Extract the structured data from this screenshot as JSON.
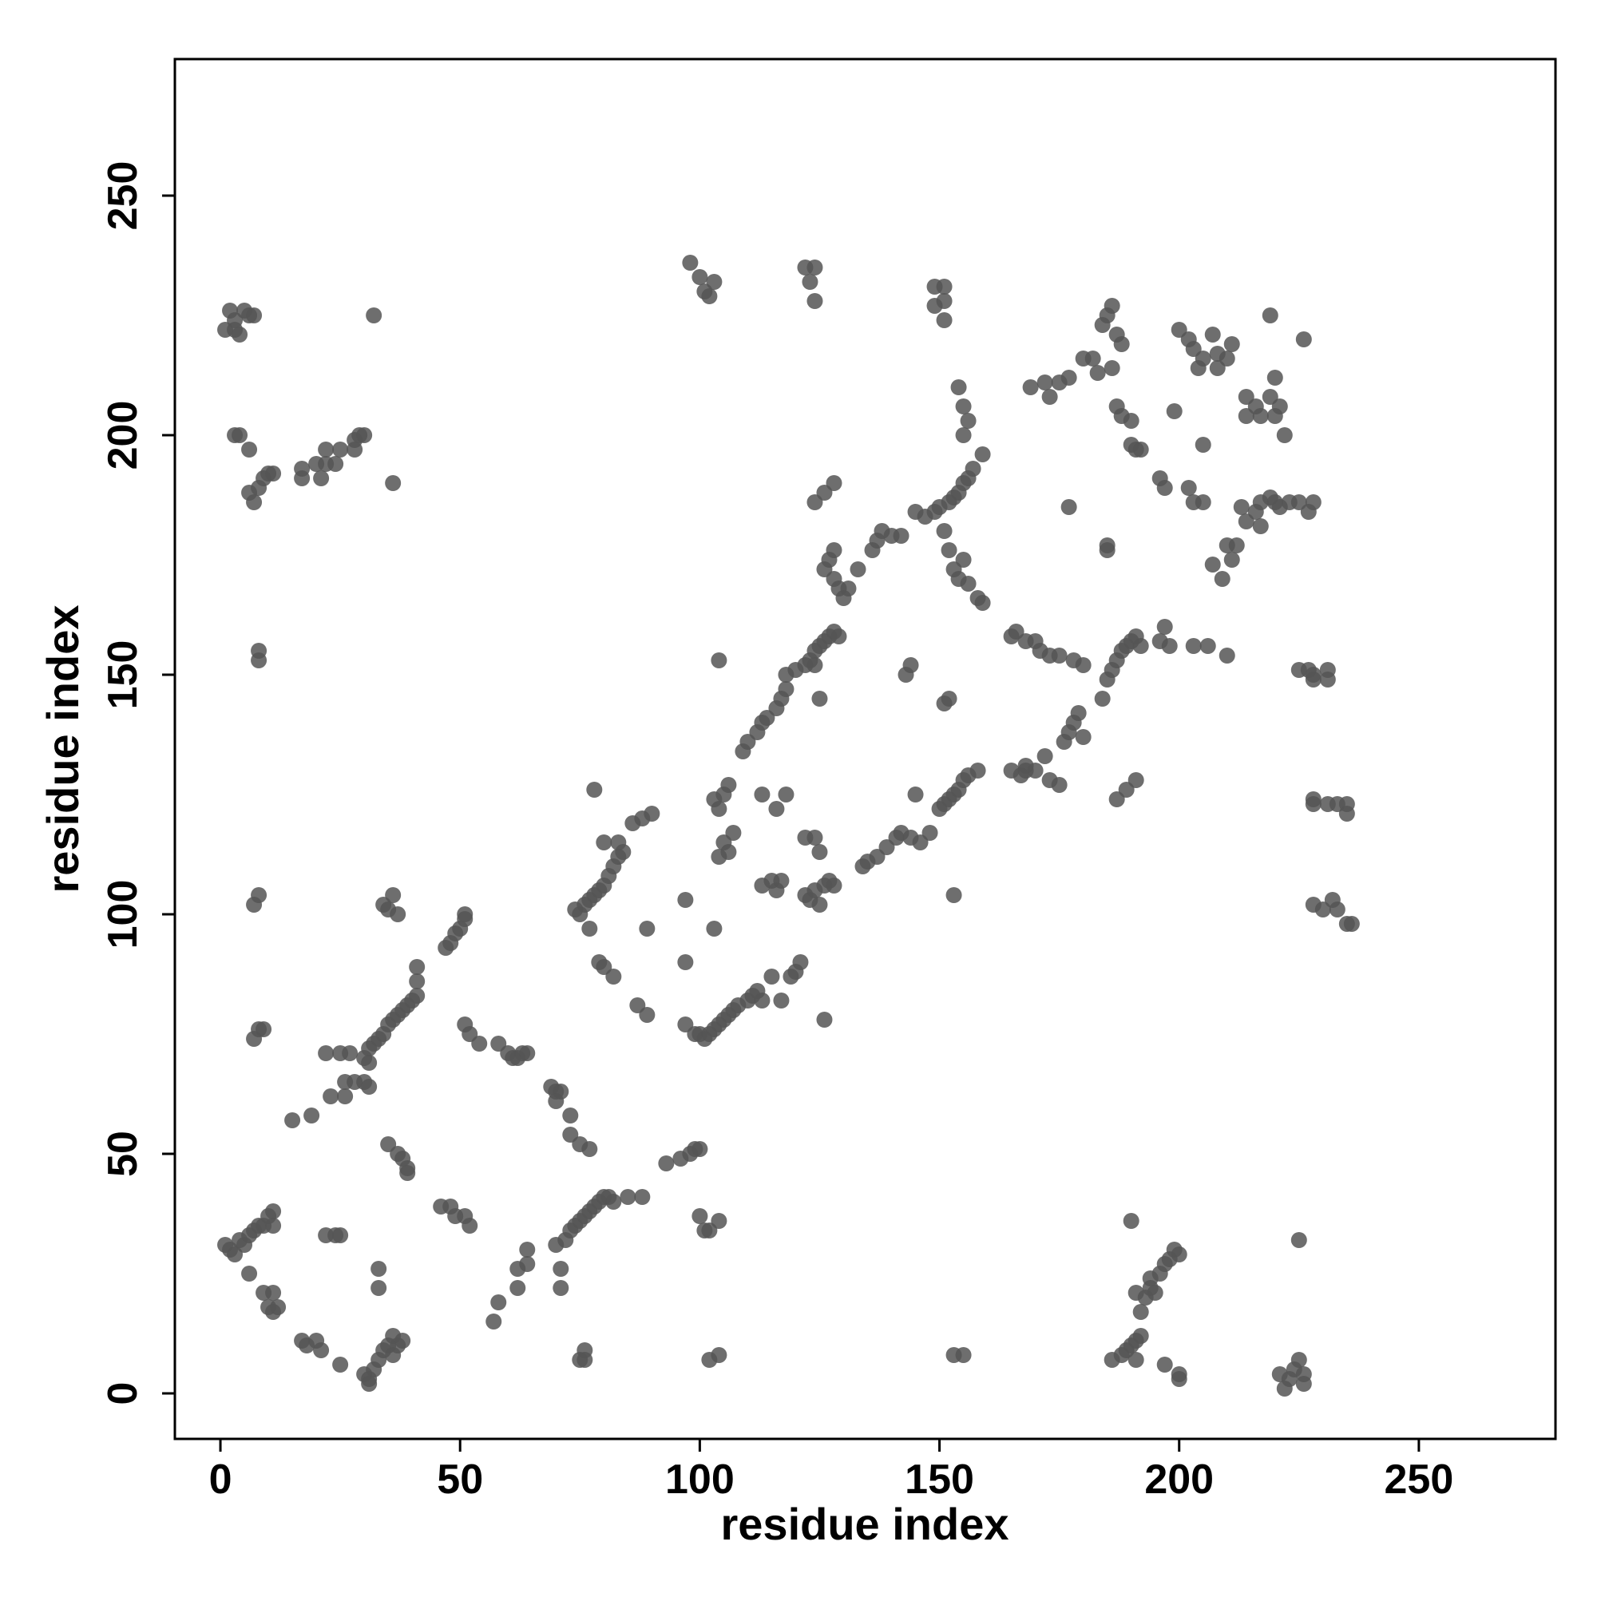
{
  "chart_data": {
    "type": "scatter",
    "xlabel": "residue index",
    "ylabel": "residue index",
    "xlim": [
      -9.5,
      278.5
    ],
    "ylim": [
      -9.5,
      278.5
    ],
    "xticks": [
      0,
      50,
      100,
      150,
      200,
      250
    ],
    "yticks": [
      0,
      50,
      100,
      150,
      200,
      250
    ],
    "color": "#555555",
    "alpha": 0.85,
    "x": [
      1,
      2,
      3,
      4,
      5,
      6,
      7,
      3,
      32,
      3,
      4,
      6,
      6,
      7,
      8,
      9,
      10,
      11,
      17,
      17,
      20,
      21,
      22,
      22,
      24,
      25,
      28,
      28,
      29,
      30,
      36,
      8,
      8,
      7,
      8,
      7,
      8,
      9,
      34,
      35,
      36,
      37,
      30,
      31,
      32,
      33,
      34,
      35,
      36,
      37,
      38,
      39,
      40,
      41,
      41,
      41,
      31,
      22,
      25,
      27,
      26,
      28,
      30,
      31,
      23,
      26,
      15,
      19,
      35,
      37,
      38,
      39,
      39,
      47,
      48,
      49,
      50,
      51,
      51,
      51,
      52,
      54,
      58,
      60,
      61,
      62,
      63,
      64,
      69,
      70,
      71,
      70,
      73,
      73,
      75,
      77,
      1,
      2,
      3,
      4,
      5,
      6,
      7,
      8,
      9,
      10,
      11,
      11,
      6,
      9,
      11,
      10,
      11,
      12,
      17,
      18,
      20,
      21,
      22,
      24,
      25,
      25,
      33,
      33,
      30,
      31,
      32,
      33,
      34,
      35,
      36,
      37,
      38,
      31,
      36,
      46,
      48,
      49,
      51,
      52,
      57,
      58,
      62,
      62,
      64,
      64,
      71,
      71,
      70,
      72,
      73,
      74,
      75,
      76,
      77,
      78,
      79,
      80,
      81,
      82,
      85,
      88,
      93,
      96,
      98,
      99,
      100,
      75,
      76,
      76,
      100,
      101,
      102,
      104,
      102,
      104,
      74,
      75,
      76,
      77,
      77,
      78,
      79,
      80,
      81,
      82,
      83,
      84,
      80,
      83,
      86,
      88,
      90,
      78,
      79,
      80,
      82,
      87,
      89,
      89,
      97,
      97,
      97,
      99,
      100,
      101,
      102,
      103,
      104,
      105,
      106,
      107,
      108,
      110,
      111,
      112,
      113,
      115,
      117,
      119,
      120,
      121,
      126,
      103,
      104,
      103,
      104,
      105,
      106,
      105,
      106,
      107,
      104,
      109,
      110,
      112,
      113,
      114,
      116,
      117,
      118,
      118,
      120,
      122,
      123,
      124,
      125,
      126,
      127,
      128,
      129,
      124,
      125,
      113,
      115,
      116,
      117,
      113,
      116,
      118,
      122,
      124,
      125,
      122,
      123,
      124,
      125,
      126,
      127,
      128,
      126,
      127,
      128,
      129,
      130,
      131,
      133,
      128,
      124,
      126,
      128,
      136,
      137,
      138,
      140,
      142,
      145,
      147,
      149,
      150,
      152,
      153,
      154,
      155,
      156,
      157,
      159,
      154,
      153,
      155,
      156,
      158,
      159,
      152,
      151,
      155,
      156,
      155,
      154,
      98,
      100,
      101,
      102,
      103,
      122,
      123,
      124,
      124,
      149,
      151,
      149,
      151,
      151,
      134,
      135,
      137,
      139,
      141,
      142,
      144,
      146,
      148,
      150,
      151,
      152,
      153,
      154,
      155,
      156,
      158,
      145,
      153,
      143,
      144,
      151,
      152,
      165,
      167,
      168,
      170,
      172,
      173,
      175,
      165,
      166,
      168,
      170,
      171,
      173,
      175,
      178,
      180,
      176,
      177,
      178,
      179,
      180,
      184,
      185,
      186,
      187,
      188,
      189,
      190,
      191,
      192,
      196,
      197,
      198,
      203,
      206,
      210,
      187,
      189,
      191,
      168,
      169,
      172,
      173,
      175,
      177,
      177,
      180,
      183,
      182,
      184,
      185,
      186,
      187,
      188,
      186,
      187,
      188,
      190,
      190,
      191,
      192,
      196,
      197,
      199,
      202,
      203,
      205,
      185,
      185,
      200,
      202,
      203,
      205,
      207,
      208,
      210,
      211,
      204,
      208,
      205,
      207,
      209,
      210,
      211,
      212,
      213,
      214,
      216,
      217,
      217,
      219,
      220,
      221,
      223,
      225,
      227,
      228,
      219,
      226,
      214,
      216,
      217,
      219,
      220,
      221,
      222,
      220,
      214,
      225,
      227,
      228,
      231,
      228,
      231,
      228,
      228,
      231,
      233,
      235,
      235,
      228,
      230,
      232,
      233,
      235,
      236,
      225,
      186,
      188,
      189,
      190,
      191,
      191,
      192,
      192,
      193,
      194,
      194,
      195,
      196,
      197,
      198,
      199,
      200,
      191,
      190,
      197,
      200,
      200,
      221,
      222,
      223,
      224,
      225,
      226,
      226,
      153,
      155
    ],
    "y": [
      222,
      226,
      222,
      221,
      226,
      225,
      225,
      224,
      225,
      200,
      200,
      197,
      188,
      186,
      189,
      191,
      192,
      192,
      193,
      191,
      194,
      191,
      194,
      197,
      194,
      197,
      197,
      199,
      200,
      200,
      190,
      153,
      155,
      102,
      104,
      74,
      76,
      76,
      102,
      101,
      104,
      100,
      70,
      72,
      73,
      74,
      75,
      77,
      78,
      79,
      80,
      81,
      82,
      83,
      86,
      89,
      69,
      71,
      71,
      71,
      65,
      65,
      65,
      64,
      62,
      62,
      57,
      58,
      52,
      50,
      49,
      47,
      46,
      93,
      94,
      96,
      97,
      99,
      100,
      77,
      75,
      73,
      73,
      71,
      70,
      70,
      71,
      71,
      64,
      63,
      63,
      61,
      58,
      54,
      52,
      51,
      31,
      30,
      29,
      32,
      31,
      33,
      34,
      35,
      35,
      37,
      38,
      35,
      25,
      21,
      21,
      18,
      17,
      18,
      11,
      10,
      11,
      9,
      33,
      33,
      33,
      6,
      26,
      22,
      4,
      3,
      5,
      7,
      9,
      10,
      8,
      10,
      11,
      2,
      12,
      39,
      39,
      37,
      37,
      35,
      15,
      19,
      22,
      26,
      27,
      30,
      26,
      22,
      31,
      32,
      34,
      35,
      36,
      37,
      38,
      39,
      40,
      41,
      41,
      40,
      41,
      41,
      48,
      49,
      50,
      51,
      51,
      7,
      9,
      7,
      37,
      34,
      34,
      36,
      7,
      8,
      101,
      100,
      102,
      97,
      103,
      104,
      105,
      106,
      108,
      110,
      112,
      113,
      115,
      115,
      119,
      120,
      121,
      126,
      90,
      89,
      87,
      81,
      79,
      97,
      103,
      90,
      77,
      75,
      75,
      74,
      75,
      76,
      77,
      78,
      79,
      80,
      81,
      82,
      83,
      84,
      82,
      87,
      82,
      87,
      88,
      90,
      78,
      97,
      153,
      124,
      122,
      125,
      127,
      115,
      113,
      117,
      112,
      134,
      136,
      138,
      140,
      141,
      143,
      145,
      147,
      150,
      151,
      152,
      153,
      155,
      156,
      157,
      158,
      159,
      158,
      152,
      145,
      106,
      107,
      105,
      107,
      125,
      122,
      125,
      116,
      116,
      113,
      104,
      103,
      105,
      102,
      106,
      107,
      106,
      172,
      174,
      170,
      168,
      166,
      168,
      172,
      176,
      186,
      188,
      190,
      176,
      178,
      180,
      179,
      179,
      184,
      183,
      184,
      185,
      186,
      187,
      188,
      190,
      191,
      193,
      196,
      170,
      172,
      174,
      169,
      166,
      165,
      176,
      180,
      200,
      203,
      206,
      210,
      236,
      233,
      230,
      229,
      232,
      235,
      232,
      235,
      228,
      231,
      231,
      227,
      228,
      224,
      110,
      111,
      112,
      114,
      116,
      117,
      116,
      115,
      117,
      122,
      123,
      124,
      125,
      126,
      128,
      129,
      130,
      125,
      104,
      150,
      152,
      144,
      145,
      130,
      129,
      131,
      130,
      133,
      128,
      127,
      158,
      159,
      157,
      157,
      155,
      154,
      154,
      153,
      152,
      136,
      138,
      140,
      142,
      137,
      145,
      149,
      151,
      153,
      155,
      156,
      157,
      158,
      156,
      157,
      160,
      156,
      156,
      156,
      154,
      124,
      126,
      128,
      130,
      210,
      211,
      208,
      211,
      212,
      185,
      216,
      213,
      216,
      223,
      225,
      227,
      221,
      219,
      214,
      206,
      204,
      203,
      198,
      197,
      197,
      191,
      189,
      205,
      189,
      186,
      186,
      176,
      177,
      222,
      220,
      218,
      216,
      221,
      217,
      216,
      219,
      214,
      214,
      198,
      173,
      170,
      177,
      174,
      177,
      185,
      182,
      184,
      186,
      181,
      187,
      186,
      185,
      186,
      186,
      184,
      186,
      225,
      220,
      208,
      206,
      204,
      208,
      204,
      206,
      200,
      212,
      204,
      151,
      151,
      150,
      151,
      149,
      149,
      124,
      123,
      123,
      123,
      121,
      123,
      102,
      101,
      103,
      101,
      98,
      98,
      32,
      7,
      8,
      9,
      10,
      11,
      7,
      12,
      17,
      20,
      22,
      24,
      21,
      25,
      27,
      28,
      30,
      29,
      21,
      36,
      6,
      4,
      3,
      4,
      1,
      3,
      5,
      7,
      4,
      2,
      8,
      8
    ]
  }
}
